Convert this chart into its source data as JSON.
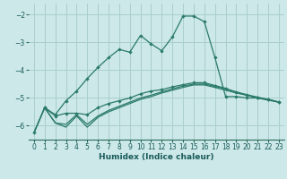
{
  "xlabel": "Humidex (Indice chaleur)",
  "background_color": "#cce8e8",
  "grid_color": "#aacece",
  "line_color": "#2a7a6a",
  "xlim": [
    -0.5,
    23.5
  ],
  "ylim": [
    -6.5,
    -1.6
  ],
  "yticks": [
    -6,
    -5,
    -4,
    -3,
    -2
  ],
  "xticks": [
    0,
    1,
    2,
    3,
    4,
    5,
    6,
    7,
    8,
    9,
    10,
    11,
    12,
    13,
    14,
    15,
    16,
    17,
    18,
    19,
    20,
    21,
    22,
    23
  ],
  "series1_x": [
    0,
    1,
    2,
    3,
    4,
    5,
    6,
    7,
    8,
    9,
    10,
    11,
    12,
    13,
    14,
    15,
    16,
    17,
    18,
    19,
    20,
    21,
    22,
    23
  ],
  "series1_y": [
    -6.25,
    -5.35,
    -5.6,
    -5.1,
    -4.75,
    -4.3,
    -3.9,
    -3.55,
    -3.25,
    -3.35,
    -2.75,
    -3.05,
    -3.3,
    -2.8,
    -2.05,
    -2.05,
    -2.25,
    -3.55,
    -4.95,
    -4.95,
    -5.0,
    -5.0,
    -5.05,
    -5.15
  ],
  "series2_x": [
    1,
    2,
    3,
    4,
    5,
    6,
    7,
    8,
    9,
    10,
    11,
    12,
    13,
    14,
    15,
    16,
    17,
    18,
    19,
    20,
    21,
    22,
    23
  ],
  "series2_y": [
    -5.35,
    -5.65,
    -5.55,
    -5.55,
    -5.6,
    -5.35,
    -5.2,
    -5.1,
    -5.0,
    -4.85,
    -4.75,
    -4.7,
    -4.6,
    -4.52,
    -4.45,
    -4.45,
    -4.55,
    -4.65,
    -4.8,
    -4.9,
    -5.0,
    -5.05,
    -5.15
  ],
  "series3_x": [
    0,
    1,
    2,
    3,
    4,
    5,
    6,
    7,
    8,
    9,
    10,
    11,
    12,
    13,
    14,
    15,
    16,
    17,
    18,
    19,
    20,
    21,
    22,
    23
  ],
  "series3_y": [
    -6.25,
    -5.35,
    -5.9,
    -5.95,
    -5.6,
    -5.95,
    -5.65,
    -5.45,
    -5.3,
    -5.15,
    -5.0,
    -4.9,
    -4.78,
    -4.67,
    -4.57,
    -4.5,
    -4.5,
    -4.58,
    -4.67,
    -4.78,
    -4.88,
    -4.97,
    -5.05,
    -5.15
  ],
  "series4_x": [
    0,
    1,
    2,
    3,
    4,
    5,
    6,
    7,
    8,
    9,
    10,
    11,
    12,
    13,
    14,
    15,
    16,
    17,
    18,
    19,
    20,
    21,
    22,
    23
  ],
  "series4_y": [
    -6.25,
    -5.35,
    -5.9,
    -6.05,
    -5.65,
    -6.05,
    -5.7,
    -5.5,
    -5.35,
    -5.2,
    -5.05,
    -4.95,
    -4.82,
    -4.72,
    -4.62,
    -4.53,
    -4.53,
    -4.62,
    -4.72,
    -4.82,
    -4.9,
    -5.0,
    -5.08,
    -5.15
  ]
}
